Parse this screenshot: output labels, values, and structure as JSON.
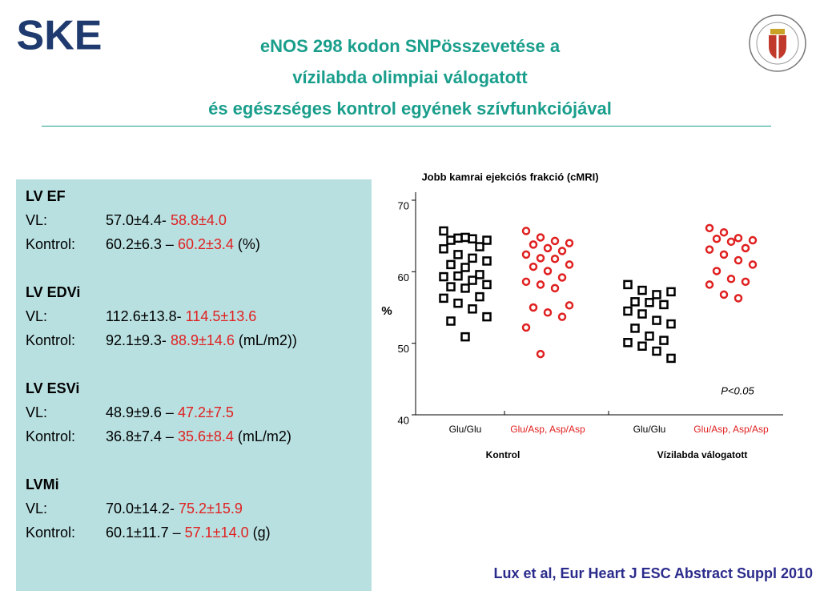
{
  "logo": "SKE",
  "header": {
    "title": [
      "eNOS 298 kodon SNPösszevetése a",
      "vízilabda olimpiai válogatott",
      "és egészséges kontrol egyének szívfunkciójával"
    ]
  },
  "panel": {
    "sections": [
      {
        "heading": "LV EF",
        "rows": [
          {
            "label": "VL:",
            "value": "57.0±4.4-",
            "highlight": "58.8±4.0"
          },
          {
            "label": "Kontrol:",
            "value": "60.2±6.3 –",
            "highlight": "60.2±3.4",
            "unit": "(%)"
          }
        ]
      },
      {
        "heading": "LV EDVi",
        "rows": [
          {
            "label": "VL:",
            "value": "112.6±13.8-",
            "highlight": "114.5±13.6"
          },
          {
            "label": "Kontrol:",
            "value": "92.1±9.3-",
            "highlight": "88.9±14.6",
            "unit": "(mL/m2))"
          }
        ]
      },
      {
        "heading": "LV ESVi",
        "rows": [
          {
            "label": "VL:",
            "value": "48.9±9.6 –",
            "highlight": "47.2±7.5"
          },
          {
            "label": "Kontrol:",
            "value": "36.8±7.4 –",
            "highlight": "35.6±8.4",
            "unit": "(mL/m2)"
          }
        ]
      },
      {
        "heading": "LVMi",
        "rows": [
          {
            "label": "VL:",
            "value": "70.0±14.2-",
            "highlight": "75.2±15.9"
          },
          {
            "label": "Kontrol:",
            "value": "60.1±11.7 –",
            "highlight": "57.1±14.0",
            "unit": "(g)"
          }
        ]
      }
    ]
  },
  "chart_data": {
    "type": "strip",
    "title": "Jobb kamrai ejekciós frakció (cMRI)",
    "y_label": "%",
    "categories": [
      "Glu/Glu",
      "Glu/Asp, Asp/Asp",
      "Glu/Glu",
      "Glu/Asp, Asp/Asp"
    ],
    "group_labels": [
      "Kontrol",
      "Vízilabda válogatott"
    ],
    "annotation": "P<0.05",
    "ylim": [
      40,
      70
    ],
    "yticks": [
      40,
      50,
      60,
      70
    ],
    "series": [
      {
        "color": "#000000",
        "marker": "square",
        "values": [
          65.7,
          64.7,
          64.6,
          64.4,
          64.4,
          64.8,
          63.5,
          63.2,
          62.4,
          61.9,
          61.5,
          61.0,
          60.6,
          59.6,
          59.3,
          59.4,
          58.8,
          58.2,
          57.9,
          57.7,
          56.5,
          56.3,
          55.6,
          54.8,
          53.7,
          53.1,
          50.9
        ]
      },
      {
        "color": "#e02020",
        "marker": "circle",
        "values": [
          65.7,
          64.8,
          64.3,
          64.0,
          63.8,
          63.3,
          62.9,
          62.4,
          61.9,
          61.8,
          61.0,
          60.7,
          60.1,
          59.2,
          58.6,
          58.2,
          57.7,
          55.3,
          55.0,
          54.3,
          53.7,
          52.2,
          48.5
        ]
      },
      {
        "color": "#000000",
        "marker": "square",
        "values": [
          58.2,
          57.4,
          56.8,
          57.2,
          55.8,
          55.7,
          55.4,
          54.5,
          54.1,
          53.2,
          52.7,
          52.1,
          51.0,
          50.4,
          50.1,
          49.6,
          48.9,
          47.9
        ]
      },
      {
        "color": "#e02020",
        "marker": "circle",
        "values": [
          66.1,
          65.5,
          64.7,
          64.4,
          64.6,
          64.2,
          63.3,
          63.1,
          62.4,
          61.6,
          61.0,
          60.1,
          59.0,
          58.6,
          58.2,
          56.8,
          56.3
        ]
      }
    ]
  },
  "citation": "Lux et al, Eur Heart J ESC Abstract Suppl 2010"
}
